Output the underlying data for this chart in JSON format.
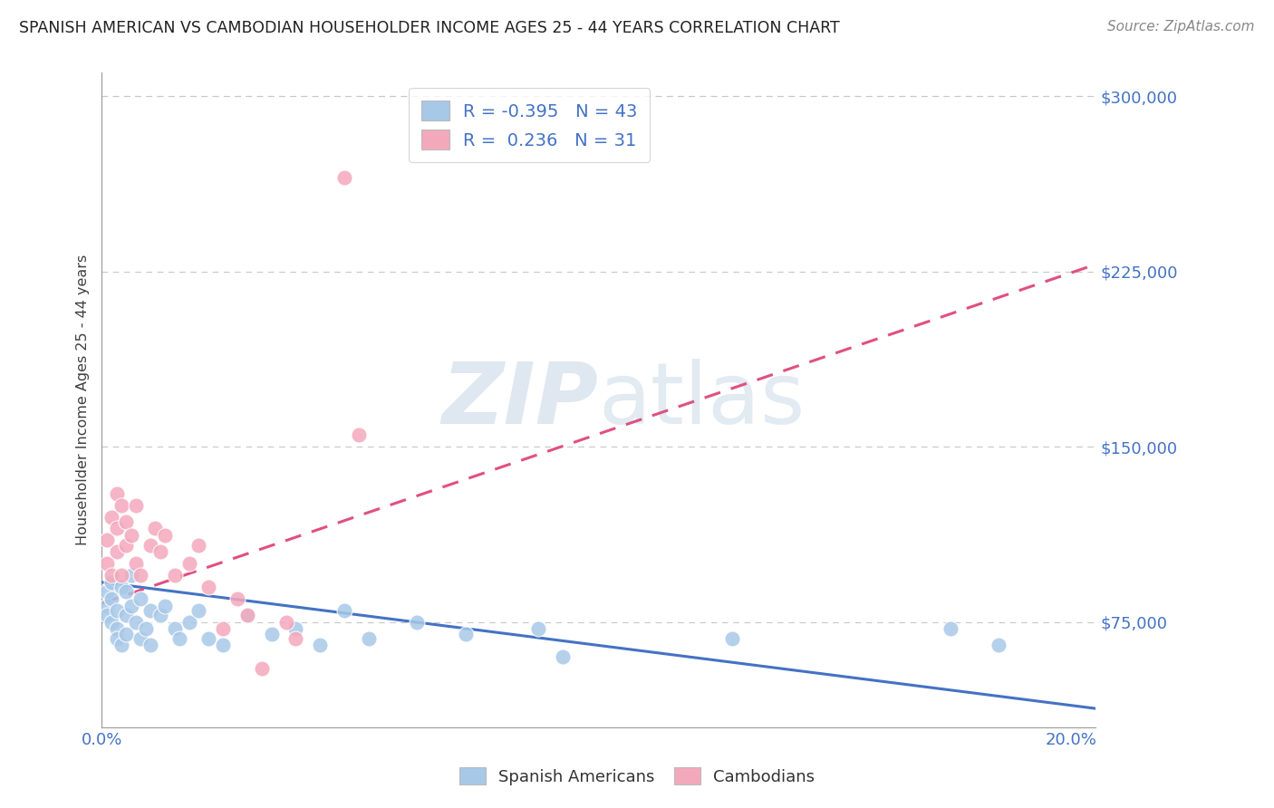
{
  "title": "SPANISH AMERICAN VS CAMBODIAN HOUSEHOLDER INCOME AGES 25 - 44 YEARS CORRELATION CHART",
  "source": "Source: ZipAtlas.com",
  "ylabel": "Householder Income Ages 25 - 44 years",
  "xlim": [
    0.0,
    0.205
  ],
  "ylim": [
    30000,
    310000
  ],
  "yticks": [
    75000,
    150000,
    225000,
    300000
  ],
  "ytick_labels": [
    "$75,000",
    "$150,000",
    "$225,000",
    "$300,000"
  ],
  "xtick_labels": [
    "0.0%",
    "",
    "",
    "",
    "20.0%"
  ],
  "xticks": [
    0.0,
    0.05,
    0.1,
    0.15,
    0.2
  ],
  "xtick_labels_full": [
    "0.0%",
    "20.0%"
  ],
  "spanish_R": -0.395,
  "spanish_N": 43,
  "cambodian_R": 0.236,
  "cambodian_N": 31,
  "spanish_color": "#a8c8e8",
  "cambodian_color": "#f4a8bc",
  "spanish_line_color": "#4472c4",
  "cambodian_line_color": "#e05080",
  "watermark_color": "#dde6f0",
  "spanish_trend_x": [
    0.0,
    0.205
  ],
  "spanish_trend_y": [
    92000,
    38000
  ],
  "cambodian_trend_x": [
    0.0,
    0.205
  ],
  "cambodian_trend_y": [
    83000,
    228000
  ],
  "spanish_x": [
    0.001,
    0.001,
    0.001,
    0.002,
    0.002,
    0.002,
    0.003,
    0.003,
    0.003,
    0.004,
    0.004,
    0.005,
    0.005,
    0.005,
    0.006,
    0.006,
    0.007,
    0.008,
    0.008,
    0.009,
    0.01,
    0.01,
    0.012,
    0.013,
    0.015,
    0.016,
    0.018,
    0.02,
    0.022,
    0.025,
    0.03,
    0.035,
    0.04,
    0.045,
    0.05,
    0.055,
    0.065,
    0.075,
    0.09,
    0.095,
    0.13,
    0.175,
    0.185
  ],
  "spanish_y": [
    88000,
    82000,
    78000,
    85000,
    92000,
    75000,
    80000,
    72000,
    68000,
    90000,
    65000,
    88000,
    78000,
    70000,
    95000,
    82000,
    75000,
    68000,
    85000,
    72000,
    80000,
    65000,
    78000,
    82000,
    72000,
    68000,
    75000,
    80000,
    68000,
    65000,
    78000,
    70000,
    72000,
    65000,
    80000,
    68000,
    75000,
    70000,
    72000,
    60000,
    68000,
    72000,
    65000
  ],
  "cambodian_x": [
    0.001,
    0.001,
    0.002,
    0.002,
    0.003,
    0.003,
    0.003,
    0.004,
    0.004,
    0.005,
    0.005,
    0.006,
    0.007,
    0.007,
    0.008,
    0.01,
    0.011,
    0.012,
    0.013,
    0.015,
    0.018,
    0.02,
    0.022,
    0.025,
    0.028,
    0.03,
    0.033,
    0.038,
    0.04,
    0.053,
    0.05
  ],
  "cambodian_y": [
    110000,
    100000,
    120000,
    95000,
    130000,
    115000,
    105000,
    125000,
    95000,
    118000,
    108000,
    112000,
    125000,
    100000,
    95000,
    108000,
    115000,
    105000,
    112000,
    95000,
    100000,
    108000,
    90000,
    72000,
    85000,
    78000,
    55000,
    75000,
    68000,
    155000,
    265000
  ]
}
